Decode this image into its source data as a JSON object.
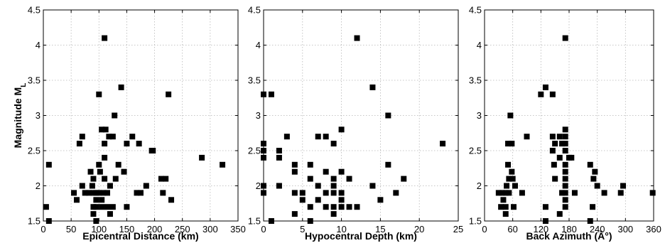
{
  "chart_data": [
    {
      "type": "scatter",
      "id": "distance",
      "xlabel": "Epicentral Distance (km)",
      "ylabel": "Magnitude M",
      "ylabel_sub": "L",
      "xlim": [
        0,
        350
      ],
      "ylim": [
        1.5,
        4.5
      ],
      "xticks": [
        0,
        50,
        100,
        150,
        200,
        250,
        300,
        350
      ],
      "yticks": [
        1.5,
        2,
        2.5,
        3,
        3.5,
        4,
        4.5
      ],
      "grid": true,
      "marker": "square",
      "points": [
        [
          110,
          4.1
        ],
        [
          140,
          3.4
        ],
        [
          100,
          3.3
        ],
        [
          225,
          3.3
        ],
        [
          128,
          3.0
        ],
        [
          70,
          2.7
        ],
        [
          105,
          2.8
        ],
        [
          112,
          2.8
        ],
        [
          118,
          2.7
        ],
        [
          125,
          2.7
        ],
        [
          160,
          2.7
        ],
        [
          65,
          2.6
        ],
        [
          110,
          2.6
        ],
        [
          150,
          2.6
        ],
        [
          172,
          2.6
        ],
        [
          195,
          2.5
        ],
        [
          197,
          2.5
        ],
        [
          110,
          2.4
        ],
        [
          285,
          2.4
        ],
        [
          10,
          2.3
        ],
        [
          100,
          2.3
        ],
        [
          135,
          2.3
        ],
        [
          85,
          2.2
        ],
        [
          102,
          2.2
        ],
        [
          145,
          2.2
        ],
        [
          90,
          2.1
        ],
        [
          110,
          2.1
        ],
        [
          130,
          2.1
        ],
        [
          212,
          2.1
        ],
        [
          220,
          2.1
        ],
        [
          322,
          2.3
        ],
        [
          70,
          2.0
        ],
        [
          88,
          2.0
        ],
        [
          120,
          2.0
        ],
        [
          185,
          2.0
        ],
        [
          55,
          1.9
        ],
        [
          75,
          1.9
        ],
        [
          82,
          1.9
        ],
        [
          90,
          1.9
        ],
        [
          95,
          1.9
        ],
        [
          100,
          1.9
        ],
        [
          108,
          1.9
        ],
        [
          115,
          1.9
        ],
        [
          168,
          1.9
        ],
        [
          175,
          1.9
        ],
        [
          215,
          1.9
        ],
        [
          60,
          1.8
        ],
        [
          95,
          1.8
        ],
        [
          105,
          1.8
        ],
        [
          230,
          1.8
        ],
        [
          5,
          1.7
        ],
        [
          90,
          1.7
        ],
        [
          95,
          1.7
        ],
        [
          105,
          1.7
        ],
        [
          115,
          1.7
        ],
        [
          125,
          1.7
        ],
        [
          150,
          1.7
        ],
        [
          90,
          1.6
        ],
        [
          120,
          1.6
        ],
        [
          10,
          1.5
        ],
        [
          95,
          1.5
        ]
      ]
    },
    {
      "type": "scatter",
      "id": "depth",
      "xlabel": "Hypocentral Depth (km)",
      "ylabel": "",
      "xlim": [
        0,
        25
      ],
      "ylim": [
        1.5,
        4.5
      ],
      "xticks": [
        0,
        5,
        10,
        15,
        20,
        25
      ],
      "yticks": [
        1.5,
        2,
        2.5,
        3,
        3.5,
        4,
        4.5
      ],
      "grid": true,
      "marker": "square",
      "points": [
        [
          12,
          4.1
        ],
        [
          14,
          3.4
        ],
        [
          0,
          3.3
        ],
        [
          1,
          3.3
        ],
        [
          16,
          3.0
        ],
        [
          10,
          2.8
        ],
        [
          3,
          2.7
        ],
        [
          7,
          2.7
        ],
        [
          8,
          2.7
        ],
        [
          0,
          2.6
        ],
        [
          9,
          2.6
        ],
        [
          23,
          2.6
        ],
        [
          0,
          2.5
        ],
        [
          2,
          2.5
        ],
        [
          0,
          2.4
        ],
        [
          2,
          2.4
        ],
        [
          4,
          2.3
        ],
        [
          6,
          2.3
        ],
        [
          16,
          2.3
        ],
        [
          4,
          2.2
        ],
        [
          8,
          2.2
        ],
        [
          10,
          2.2
        ],
        [
          6,
          2.1
        ],
        [
          9,
          2.1
        ],
        [
          11,
          2.1
        ],
        [
          18,
          2.1
        ],
        [
          0,
          2.0
        ],
        [
          2,
          2.0
        ],
        [
          7,
          2.0
        ],
        [
          9,
          2.0
        ],
        [
          14,
          2.0
        ],
        [
          0,
          1.9
        ],
        [
          4,
          1.9
        ],
        [
          5,
          1.9
        ],
        [
          8,
          1.9
        ],
        [
          9,
          1.9
        ],
        [
          10,
          1.9
        ],
        [
          17,
          1.9
        ],
        [
          5,
          1.8
        ],
        [
          7,
          1.8
        ],
        [
          10,
          1.8
        ],
        [
          15,
          1.8
        ],
        [
          6,
          1.7
        ],
        [
          8,
          1.7
        ],
        [
          9,
          1.7
        ],
        [
          10,
          1.7
        ],
        [
          11,
          1.7
        ],
        [
          12,
          1.7
        ],
        [
          4,
          1.6
        ],
        [
          9,
          1.6
        ],
        [
          1,
          1.5
        ],
        [
          6,
          1.5
        ]
      ]
    },
    {
      "type": "scatter",
      "id": "azimuth",
      "xlabel": "Back Azimuth (Â°)",
      "ylabel": "",
      "xlim": [
        0,
        360
      ],
      "ylim": [
        1.5,
        4.5
      ],
      "xticks": [
        0,
        60,
        120,
        180,
        240,
        300,
        360
      ],
      "yticks": [
        1.5,
        2,
        2.5,
        3,
        3.5,
        4,
        4.5
      ],
      "grid": true,
      "marker": "square",
      "points": [
        [
          172,
          4.1
        ],
        [
          130,
          3.4
        ],
        [
          120,
          3.3
        ],
        [
          145,
          3.3
        ],
        [
          55,
          3.0
        ],
        [
          172,
          2.8
        ],
        [
          90,
          2.7
        ],
        [
          145,
          2.7
        ],
        [
          160,
          2.7
        ],
        [
          172,
          2.7
        ],
        [
          50,
          2.6
        ],
        [
          58,
          2.6
        ],
        [
          150,
          2.6
        ],
        [
          165,
          2.6
        ],
        [
          172,
          2.6
        ],
        [
          145,
          2.5
        ],
        [
          172,
          2.5
        ],
        [
          160,
          2.4
        ],
        [
          180,
          2.4
        ],
        [
          185,
          2.4
        ],
        [
          50,
          2.3
        ],
        [
          148,
          2.3
        ],
        [
          172,
          2.3
        ],
        [
          225,
          2.3
        ],
        [
          58,
          2.2
        ],
        [
          172,
          2.2
        ],
        [
          235,
          2.2
        ],
        [
          52,
          2.1
        ],
        [
          60,
          2.1
        ],
        [
          150,
          2.1
        ],
        [
          172,
          2.1
        ],
        [
          232,
          2.1
        ],
        [
          47,
          2.0
        ],
        [
          65,
          2.0
        ],
        [
          172,
          2.0
        ],
        [
          240,
          2.0
        ],
        [
          295,
          2.0
        ],
        [
          30,
          1.9
        ],
        [
          38,
          1.9
        ],
        [
          45,
          1.9
        ],
        [
          52,
          1.9
        ],
        [
          80,
          1.9
        ],
        [
          165,
          1.9
        ],
        [
          172,
          1.9
        ],
        [
          192,
          1.9
        ],
        [
          255,
          1.9
        ],
        [
          290,
          1.9
        ],
        [
          358,
          1.9
        ],
        [
          40,
          1.8
        ],
        [
          172,
          1.8
        ],
        [
          35,
          1.7
        ],
        [
          45,
          1.7
        ],
        [
          62,
          1.7
        ],
        [
          130,
          1.7
        ],
        [
          172,
          1.7
        ],
        [
          230,
          1.7
        ],
        [
          45,
          1.6
        ],
        [
          160,
          1.6
        ],
        [
          130,
          1.5
        ],
        [
          225,
          1.5
        ]
      ]
    }
  ]
}
